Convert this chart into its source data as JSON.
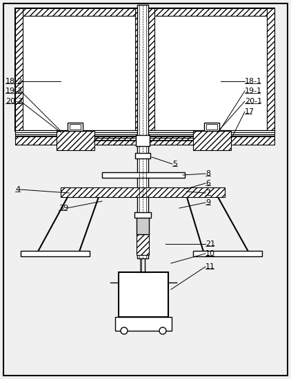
{
  "bg": "#f0f0f0",
  "lc": "#000000",
  "fs": 8.0,
  "fig_w": 4.22,
  "fig_h": 5.5,
  "dpi": 100
}
